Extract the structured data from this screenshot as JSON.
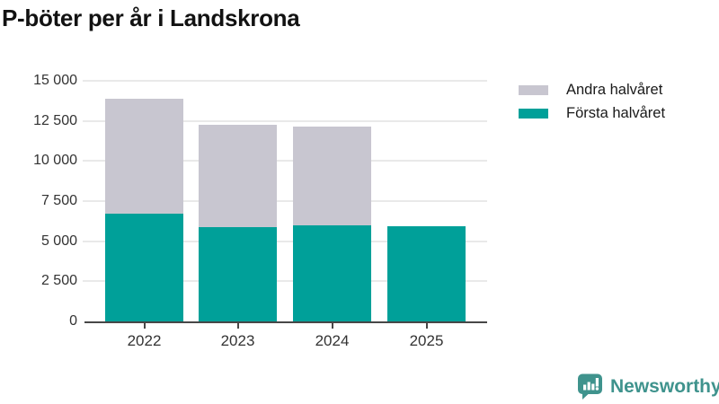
{
  "page": {
    "background": "#ffffff"
  },
  "header": {
    "title": "P-böter per år i Landskrona"
  },
  "chart_data": {
    "type": "bar",
    "stacked": true,
    "title": "P-böter per år i Landskrona",
    "categories": [
      "2022",
      "2023",
      "2024",
      "2025"
    ],
    "series": [
      {
        "name": "Första halvåret",
        "color": "#00a099",
        "values": [
          6700,
          5850,
          6000,
          5950
        ]
      },
      {
        "name": "Andra halvåret",
        "color": "#c8c6d0",
        "values": [
          7200,
          6400,
          6150,
          0
        ]
      }
    ],
    "stack_totals": [
      13900,
      12250,
      12150,
      5950
    ],
    "xlabel": "",
    "ylabel": "",
    "ylim": [
      0,
      15000
    ],
    "yticks": [
      0,
      2500,
      5000,
      7500,
      10000,
      12500,
      15000
    ],
    "ytick_labels": [
      "0",
      "2 500",
      "5 000",
      "7 500",
      "10 000",
      "12 500",
      "15 000"
    ],
    "grid": true,
    "legend_position": "top-right"
  },
  "legend": {
    "items": [
      {
        "label": "Andra halvåret",
        "color": "#c8c6d0"
      },
      {
        "label": "Första halvåret",
        "color": "#00a099"
      }
    ]
  },
  "branding": {
    "logo_text": "Newsworthy",
    "logo_icon": "newsworthy-speech-bubble-bar-chart-icon",
    "brand_color": "#3f938d"
  },
  "colors": {
    "bar_teal": "#00a099",
    "bar_gray": "#c8c6d0",
    "axis": "#474747",
    "grid": "#e9e9e9",
    "tick_text": "#333333",
    "title_text": "#121212"
  }
}
